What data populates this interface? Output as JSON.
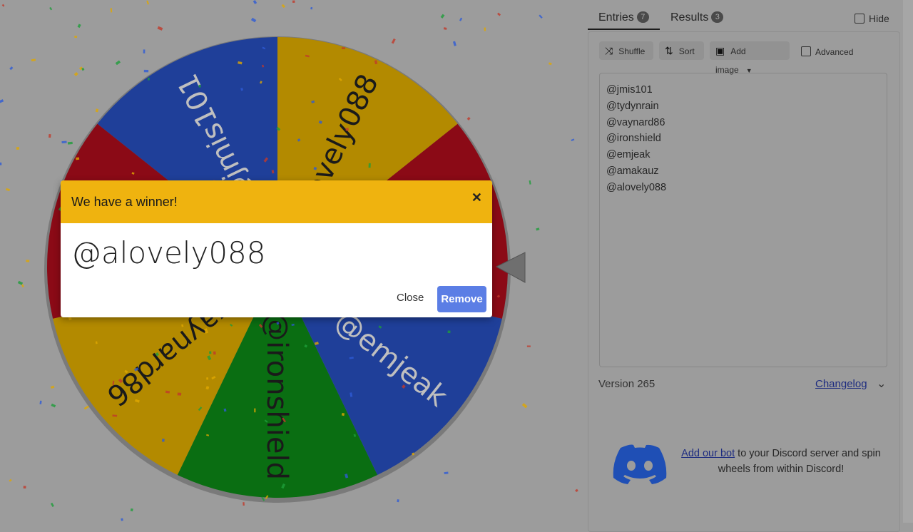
{
  "tabs": [
    {
      "label": "Entries",
      "count": "7"
    },
    {
      "label": "Results",
      "count": "3"
    }
  ],
  "hide_label": "Hide",
  "toolbar": {
    "shuffle": "Shuffle",
    "sort": "Sort",
    "add_image": "Add image",
    "advanced": "Advanced"
  },
  "entries": [
    "@jmis101",
    "@tydynrain",
    "@vaynard86",
    "@ironshield",
    "@emjeak",
    "@amakauz",
    "@alovely088"
  ],
  "version": "Version 265",
  "changelog": "Changelog",
  "discord": {
    "link": "Add our bot",
    "text": " to your Discord server and spin wheels from within Discord!"
  },
  "dialog": {
    "title": "We have a winner!",
    "winner": "@alovely088",
    "close": "Close",
    "remove": "Remove"
  },
  "wheel_colors": [
    "#1f3f99",
    "#8b0a16",
    "#b38a00",
    "#0a6e12"
  ],
  "header_color": "#efb30f"
}
